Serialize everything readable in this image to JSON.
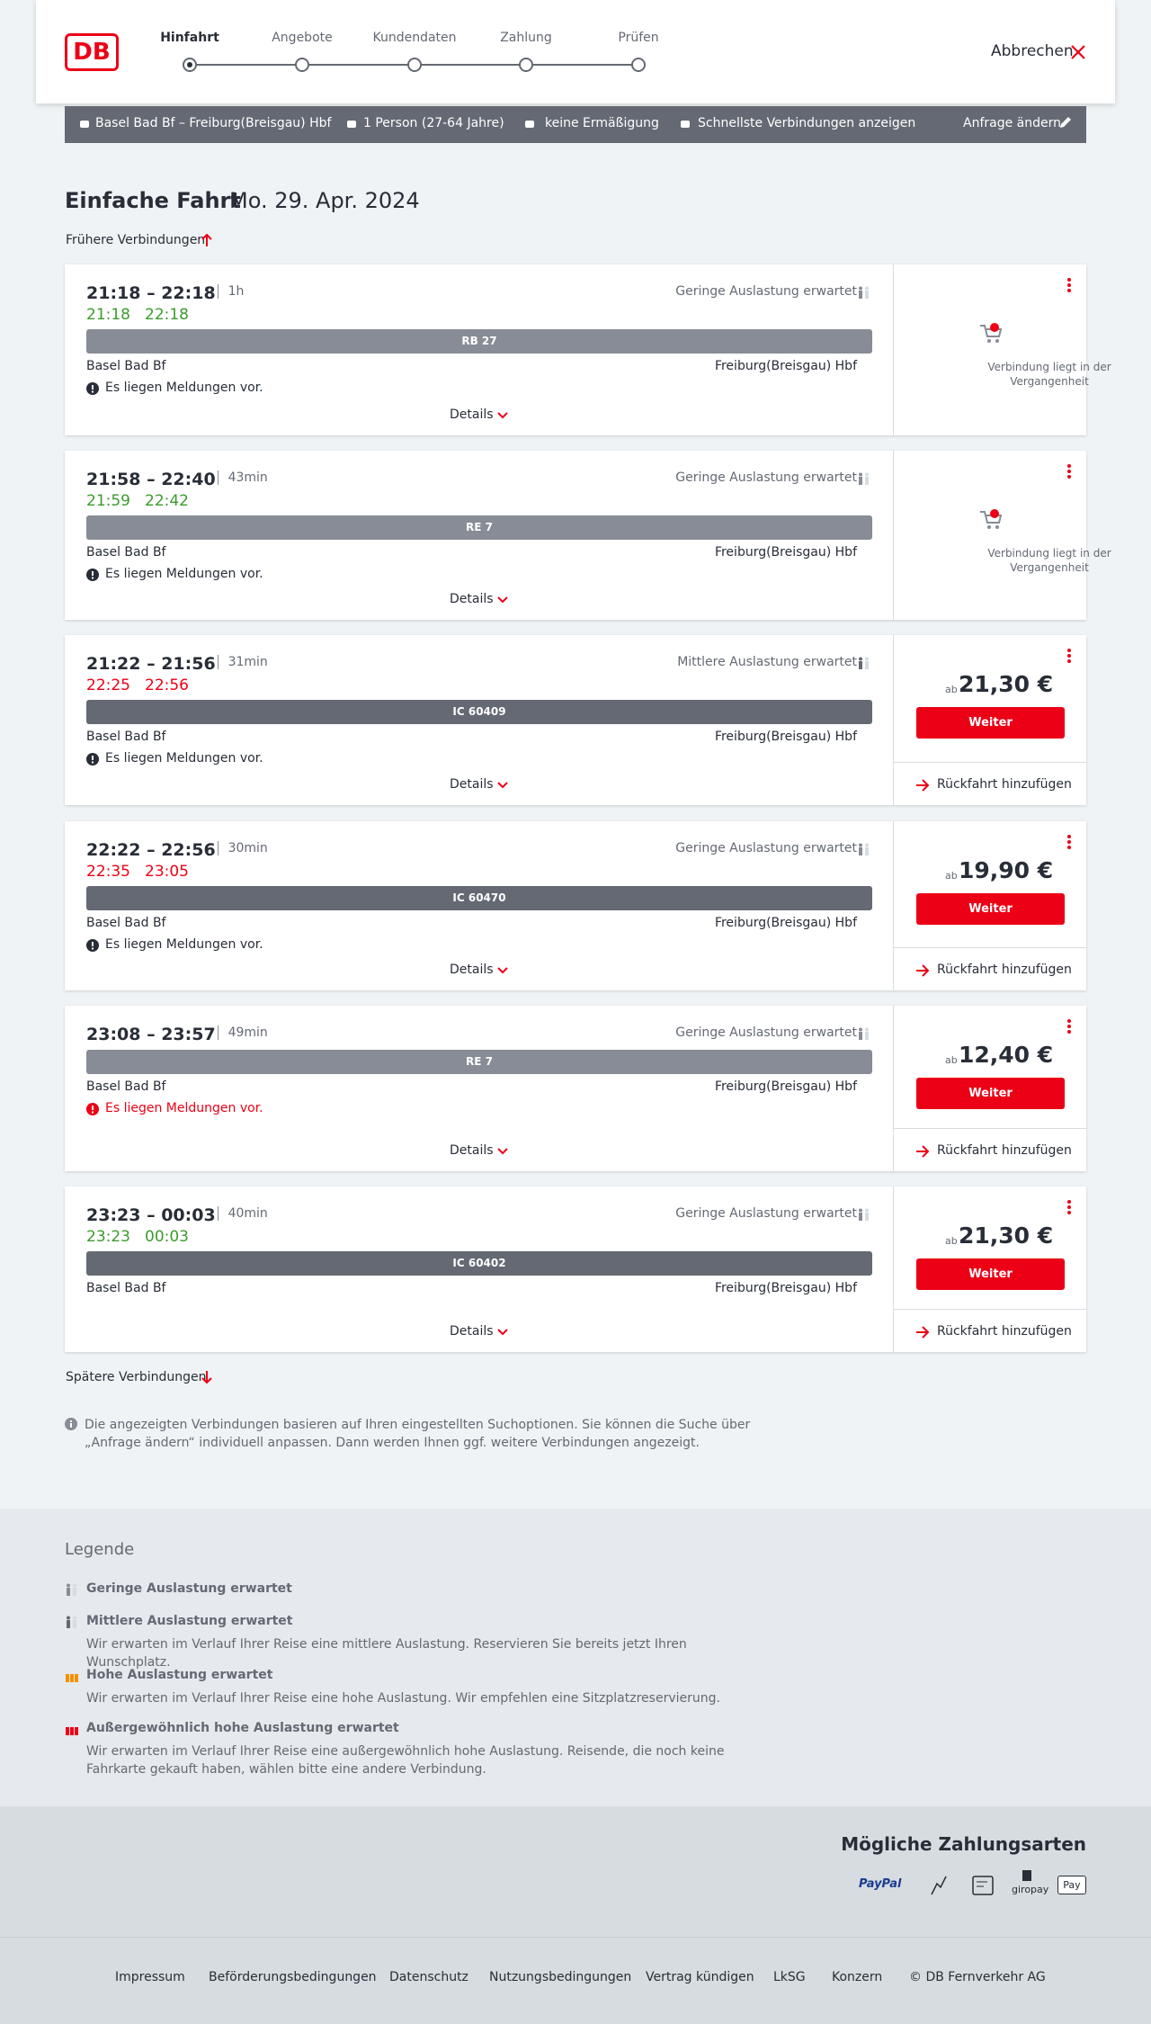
{
  "header": {
    "logo": "DB",
    "steps": [
      "Hinfahrt",
      "Angebote",
      "Kundendaten",
      "Zahlung",
      "Prüfen"
    ],
    "cancel": "Abbrechen"
  },
  "search": {
    "route": "Basel Bad Bf – Freiburg(Breisgau) Hbf",
    "passengers": "1 Person (27-64 Jahre)",
    "discount": "keine Ermäßigung",
    "fastest": "Schnellste Verbindungen anzeigen",
    "change": "Anfrage ändern"
  },
  "title": {
    "trip": "Einfache Fahrt",
    "date": "Mo. 29. Apr. 2024"
  },
  "earlier": "Frühere Verbindungen",
  "later": "Spätere Verbindungen",
  "labels": {
    "details": "Details",
    "past": "Verbindung liegt in der Vergangenheit",
    "ab": "ab",
    "continue": "Weiter",
    "return": "Rückfahrt hinzufügen"
  },
  "connections": [
    {
      "times": "21:18 – 22:18",
      "duration": "1h",
      "occupancy": "Geringe Auslastung erwartet",
      "realtime": [
        "21:18",
        "22:18"
      ],
      "realtime_color": "#3c9b2c",
      "train": "RB 27",
      "train_color": "#878c96",
      "from": "Basel Bad Bf",
      "to": "Freiburg(Breisgau) Hbf",
      "notice": "Es liegen Meldungen vor.",
      "notice_color": "#282d37"
    },
    {
      "times": "21:58 – 22:40",
      "duration": "43min",
      "occupancy": "Geringe Auslastung erwartet",
      "realtime": [
        "21:59",
        "22:42"
      ],
      "realtime_color": "#3c9b2c",
      "train": "RE 7",
      "train_color": "#878c96",
      "from": "Basel Bad Bf",
      "to": "Freiburg(Breisgau) Hbf",
      "notice": "Es liegen Meldungen vor.",
      "notice_color": "#282d37"
    },
    {
      "times": "21:22 – 21:56",
      "duration": "31min",
      "occupancy": "Mittlere Auslastung erwartet",
      "realtime": [
        "22:25",
        "22:56"
      ],
      "realtime_color": "#ec0016",
      "train": "IC 60409",
      "train_color": "#646973",
      "from": "Basel Bad Bf",
      "to": "Freiburg(Breisgau) Hbf",
      "notice": "Es liegen Meldungen vor.",
      "notice_color": "#282d37",
      "price": "21,30 €"
    },
    {
      "times": "22:22 – 22:56",
      "duration": "30min",
      "occupancy": "Geringe Auslastung erwartet",
      "realtime": [
        "22:35",
        "23:05"
      ],
      "realtime_color": "#ec0016",
      "train": "IC 60470",
      "train_color": "#646973",
      "from": "Basel Bad Bf",
      "to": "Freiburg(Breisgau) Hbf",
      "notice": "Es liegen Meldungen vor.",
      "notice_color": "#282d37",
      "price": "19,90 €"
    },
    {
      "times": "23:08 – 23:57",
      "duration": "49min",
      "occupancy": "Geringe Auslastung erwartet",
      "train": "RE 7",
      "train_color": "#878c96",
      "from": "Basel Bad Bf",
      "to": "Freiburg(Breisgau) Hbf",
      "notice": "Es liegen Meldungen vor.",
      "notice_color": "#ec0016",
      "price": "12,40 €"
    },
    {
      "times": "23:23 – 00:03",
      "duration": "40min",
      "occupancy": "Geringe Auslastung erwartet",
      "realtime": [
        "23:23",
        "00:03"
      ],
      "realtime_color": "#3c9b2c",
      "train": "IC 60402",
      "train_color": "#646973",
      "from": "Basel Bad Bf",
      "to": "Freiburg(Breisgau) Hbf",
      "price": "21,30 €"
    }
  ],
  "info": "Die angezeigten Verbindungen basieren auf Ihren eingestellten Suchoptionen. Sie können die Suche über „Anfrage ändern“ individuell anpassen. Dann werden Ihnen ggf. weitere Verbindungen angezeigt.",
  "legend": {
    "title": "Legende",
    "items": [
      {
        "name": "Geringe Auslastung erwartet",
        "color": "#878c96"
      },
      {
        "name": "Mittlere Auslastung erwartet",
        "color": "#646973",
        "description": "Wir erwarten im Verlauf Ihrer Reise eine mittlere Auslastung. Reservieren Sie bereits jetzt Ihren Wunschplatz."
      },
      {
        "name": "Hohe Auslastung erwartet",
        "color": "#f39200",
        "description": "Wir erwarten im Verlauf Ihrer Reise eine hohe Auslastung. Wir empfehlen eine Sitzplatzreservierung."
      },
      {
        "name": "Außergewöhnlich hohe Auslastung erwartet",
        "color": "#ec0016",
        "description": "Wir erwarten im Verlauf Ihrer Reise eine außergewöhnlich hohe Auslastung. Reisende, die noch keine Fahrkarte gekauft haben, wählen bitte eine andere Verbindung."
      }
    ]
  },
  "payment": {
    "title": "Mögliche Zahlungsarten",
    "paypal": "PayPal",
    "giropay": "giropay",
    "applepay": "Pay"
  },
  "footer": [
    "Impressum",
    "Beförderungsbedingungen",
    "Datenschutz",
    "Nutzungsbedingungen",
    "Vertrag kündigen",
    "LkSG",
    "Konzern",
    "© DB Fernverkehr AG"
  ]
}
